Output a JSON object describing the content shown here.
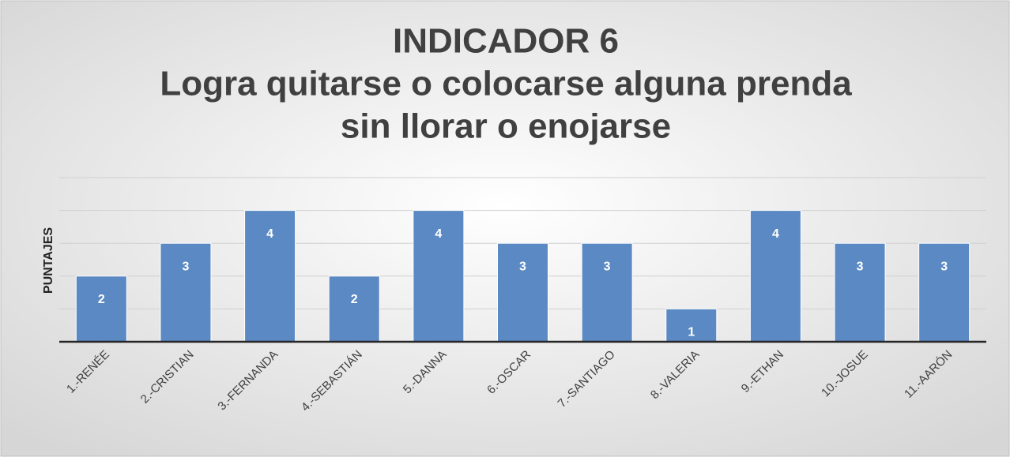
{
  "chart_data": {
    "type": "bar",
    "title": [
      "INDICADOR 6",
      "Logra quitarse o colocarse alguna prenda",
      "sin llorar o enojarse"
    ],
    "y_label": "PUNTAJES",
    "categories": [
      "1.-RENÉE",
      "2.-CRISTIAN",
      "3.-FERNANDA",
      "4.-SEBASTIÁN",
      "5.-DANNA",
      "6.-OSCAR",
      "7.-SANTIAGO",
      "8.-VALERIA",
      "9.-ETHAN",
      "10.-JOSUE",
      "11.-AARÓN"
    ],
    "values": [
      2,
      3,
      4,
      2,
      4,
      3,
      3,
      1,
      4,
      3,
      3
    ],
    "color": "#5b89c4",
    "ylim": [
      0,
      5
    ],
    "yticks": [
      0,
      1,
      2,
      3,
      4,
      5
    ],
    "grid": true
  }
}
